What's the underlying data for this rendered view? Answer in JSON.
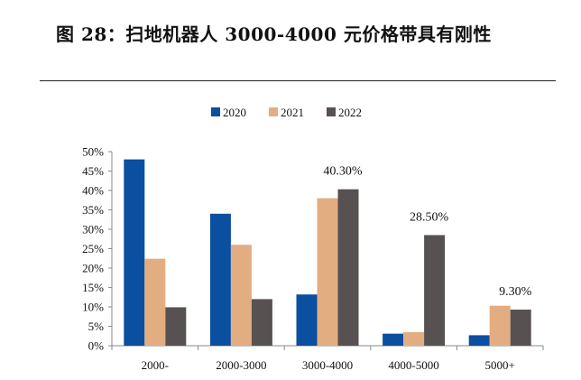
{
  "figure": {
    "title": "图 28：扫地机器人 3000-4000 元价格带具有刚性"
  },
  "chart_data": {
    "type": "bar",
    "categories": [
      "2000-",
      "2000-3000",
      "3000-4000",
      "4000-5000",
      "5000+"
    ],
    "series": [
      {
        "name": "2020",
        "color": "#0a4fa0",
        "values": [
          48.0,
          34.0,
          13.2,
          3.1,
          2.7
        ]
      },
      {
        "name": "2021",
        "color": "#e3ad82",
        "values": [
          22.4,
          26.0,
          38.0,
          3.5,
          10.3
        ]
      },
      {
        "name": "2022",
        "color": "#585151",
        "values": [
          9.9,
          12.0,
          40.3,
          28.5,
          9.3
        ]
      }
    ],
    "yticks": [
      "0%",
      "5%",
      "10%",
      "15%",
      "20%",
      "25%",
      "30%",
      "35%",
      "40%",
      "45%",
      "50%"
    ],
    "ylim": [
      0,
      50
    ],
    "legend_position": "top-center",
    "annotations": [
      {
        "category_index": 2,
        "series_index": 2,
        "text": "40.30%"
      },
      {
        "category_index": 3,
        "series_index": 2,
        "text": "28.50%"
      },
      {
        "category_index": 4,
        "series_index": 2,
        "text": "9.30%"
      }
    ]
  }
}
